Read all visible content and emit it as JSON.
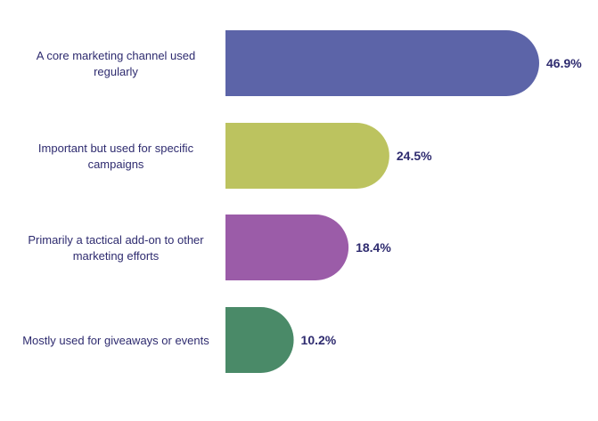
{
  "chart_data": {
    "type": "bar",
    "orientation": "horizontal",
    "categories": [
      [
        "A core marketing channel used",
        "regularly"
      ],
      [
        "Important but used for specific",
        "campaigns"
      ],
      [
        "Primarily a tactical add-on to other",
        "marketing efforts"
      ],
      [
        "Mostly used for giveaways or events"
      ]
    ],
    "values": [
      46.9,
      24.5,
      18.4,
      10.2
    ],
    "value_labels": [
      "46.9%",
      "24.5%",
      "18.4%",
      "10.2%"
    ],
    "colors": [
      "#5c64a8",
      "#bcc35f",
      "#9b5ca8",
      "#4a8a68"
    ],
    "title": "",
    "xlabel": "",
    "ylabel": "",
    "xlim": [
      0,
      46.9
    ],
    "grid": false,
    "legend": "none"
  }
}
